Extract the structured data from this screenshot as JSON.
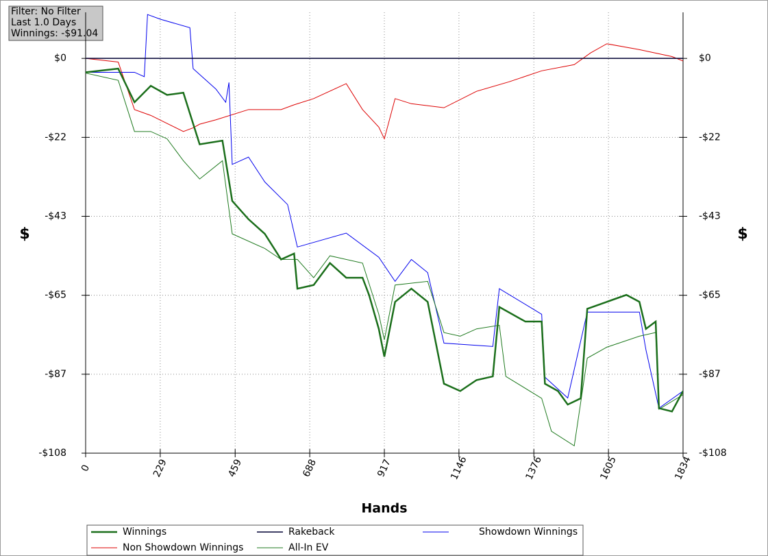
{
  "chart_data": {
    "type": "line",
    "filter_box": [
      "Filter: No Filter",
      "Last 1.0 Days",
      "Winnings: -$91.04"
    ],
    "x_label": "Hands",
    "y_label": "$",
    "y2_label": "$",
    "xlim": [
      0,
      1834
    ],
    "xticks": [
      0,
      229,
      459,
      688,
      917,
      1146,
      1376,
      1605,
      1834
    ],
    "ylim": [
      -108,
      12.6
    ],
    "yticks": [
      {
        "value": -108,
        "label": "-$108"
      },
      {
        "value": -86.4,
        "label": "-$87"
      },
      {
        "value": -64.8,
        "label": "-$65"
      },
      {
        "value": -43.2,
        "label": "-$43"
      },
      {
        "value": -21.6,
        "label": "-$22"
      },
      {
        "value": 0,
        "label": "$0"
      }
    ],
    "grid": true,
    "series": [
      {
        "name": "Winnings",
        "color": "#1a6e1a",
        "width": 2.5,
        "x": [
          0,
          100,
          150,
          200,
          250,
          300,
          350,
          420,
          450,
          500,
          550,
          600,
          640,
          650,
          700,
          750,
          800,
          850,
          870,
          900,
          917,
          950,
          1000,
          1050,
          1100,
          1150,
          1200,
          1250,
          1270,
          1350,
          1400,
          1410,
          1450,
          1480,
          1520,
          1540,
          1600,
          1660,
          1700,
          1720,
          1750,
          1760,
          1800,
          1834
        ],
        "values": [
          -3.8,
          -2.8,
          -12,
          -7.5,
          -10,
          -9.4,
          -23.5,
          -22.5,
          -39,
          -44,
          -48,
          -55,
          -53.4,
          -63,
          -62,
          -56,
          -60,
          -60,
          -64.7,
          -74,
          -81.6,
          -66.6,
          -63,
          -66.6,
          -89,
          -91,
          -88,
          -87,
          -68,
          -72,
          -72,
          -89,
          -91,
          -94.7,
          -93,
          -68.5,
          -66.6,
          -64.7,
          -66.6,
          -74,
          -72,
          -95.7,
          -96.6,
          -91
        ]
      },
      {
        "name": "Rakeback",
        "color": "#000033",
        "width": 1.5,
        "x": [
          0,
          1834
        ],
        "values": [
          0,
          0
        ]
      },
      {
        "name": "Showdown Winnings",
        "color": "#0000ee",
        "width": 1,
        "x": [
          0,
          150,
          180,
          190,
          230,
          320,
          330,
          400,
          430,
          440,
          450,
          500,
          550,
          620,
          650,
          800,
          900,
          950,
          1000,
          1050,
          1100,
          1250,
          1270,
          1400,
          1410,
          1480,
          1540,
          1700,
          1720,
          1760,
          1834
        ],
        "values": [
          -3.8,
          -3.8,
          -5,
          12,
          10.7,
          8.4,
          -2.8,
          -8.4,
          -12,
          -6.6,
          -29,
          -27,
          -33.8,
          -40,
          -51.6,
          -47.8,
          -54.4,
          -61,
          -55,
          -58.6,
          -77.9,
          -78.8,
          -63,
          -70,
          -87.2,
          -92.9,
          -69.4,
          -69.4,
          -79.7,
          -95.7,
          -91
        ]
      },
      {
        "name": "Non Showdown Winnings",
        "color": "#dd0000",
        "width": 1,
        "x": [
          0,
          100,
          150,
          200,
          300,
          330,
          350,
          400,
          500,
          600,
          640,
          700,
          800,
          850,
          900,
          917,
          950,
          1000,
          1100,
          1200,
          1300,
          1400,
          1500,
          1550,
          1600,
          1700,
          1800,
          1834
        ],
        "values": [
          0,
          -1,
          -14,
          -15.6,
          -20,
          -19,
          -18,
          -16.8,
          -14,
          -14,
          -12.7,
          -11,
          -6.9,
          -14,
          -18.8,
          -22,
          -11,
          -12.4,
          -13.5,
          -9,
          -6.4,
          -3.4,
          -1.7,
          1.5,
          4,
          2.4,
          0.5,
          -0.7
        ]
      },
      {
        "name": "All-In EV",
        "color": "#1f7a1f",
        "width": 1,
        "x": [
          0,
          100,
          150,
          200,
          250,
          300,
          350,
          420,
          450,
          550,
          600,
          650,
          700,
          750,
          850,
          900,
          917,
          950,
          1050,
          1100,
          1150,
          1200,
          1270,
          1290,
          1400,
          1430,
          1500,
          1540,
          1600,
          1700,
          1750,
          1760,
          1834
        ],
        "values": [
          -4,
          -6,
          -20,
          -20,
          -22,
          -28,
          -33,
          -28,
          -48,
          -52,
          -55,
          -55,
          -60,
          -54,
          -56,
          -70,
          -77,
          -62,
          -61,
          -75,
          -76,
          -74,
          -73,
          -87,
          -93,
          -102,
          -106,
          -82,
          -79,
          -76,
          -75,
          -96,
          -92
        ]
      }
    ],
    "legend_order": [
      0,
      1,
      2,
      3,
      4
    ]
  }
}
